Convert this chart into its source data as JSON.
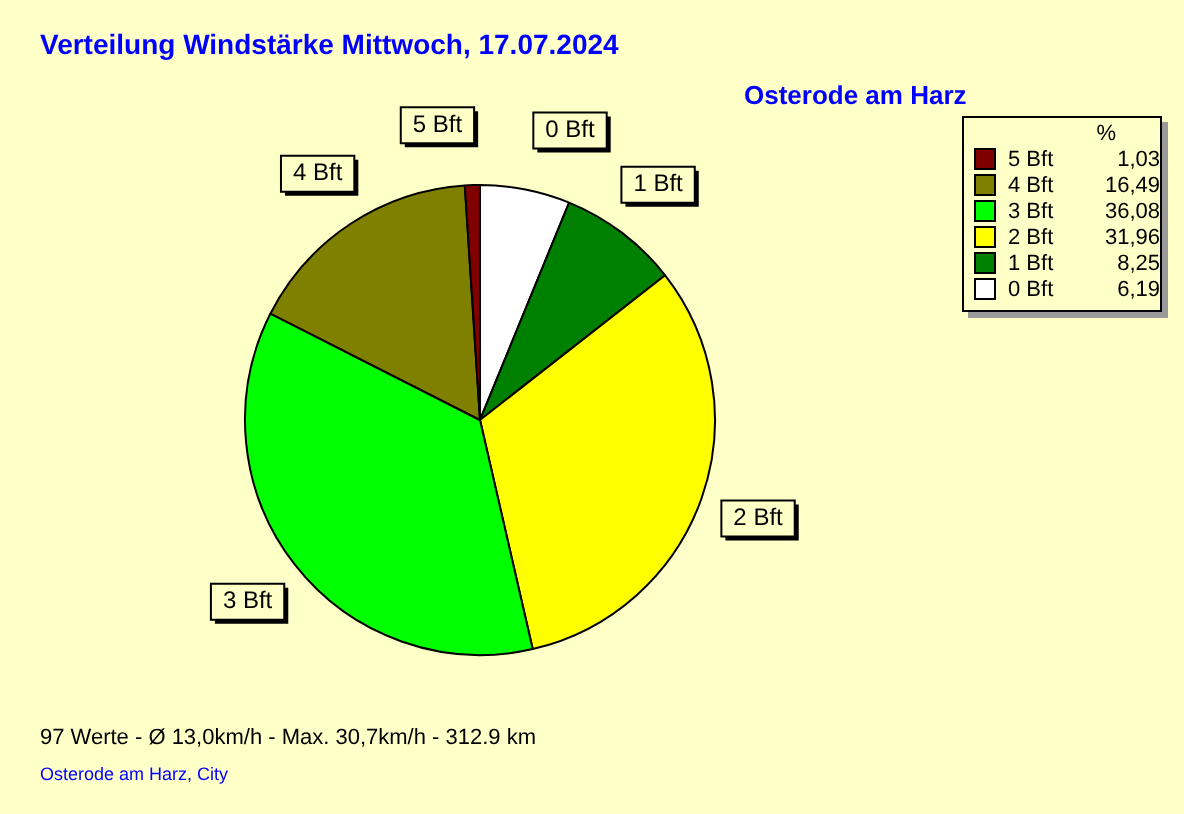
{
  "chart_data": {
    "type": "pie",
    "title": "Verteilung Windstärke  Mittwoch, 17.07.2024",
    "subtitle": "Osterode am Harz",
    "legend_title": "%",
    "categories": [
      "0 Bft",
      "1 Bft",
      "2 Bft",
      "3 Bft",
      "4 Bft",
      "5 Bft"
    ],
    "values": [
      6.19,
      8.25,
      31.96,
      36.08,
      16.49,
      1.03
    ],
    "value_labels": [
      "6,19",
      "8,25",
      "31,96",
      "36,08",
      "16,49",
      "1,03"
    ],
    "colors": [
      "#ffffff",
      "#008000",
      "#ffff00",
      "#00ff00",
      "#808000",
      "#800000"
    ],
    "legend": "top right",
    "annotations": [
      "97 Werte   -   Ø 13,0km/h  -  Max. 30,7km/h   -   312.9 km",
      "Osterode am Harz, City"
    ]
  }
}
